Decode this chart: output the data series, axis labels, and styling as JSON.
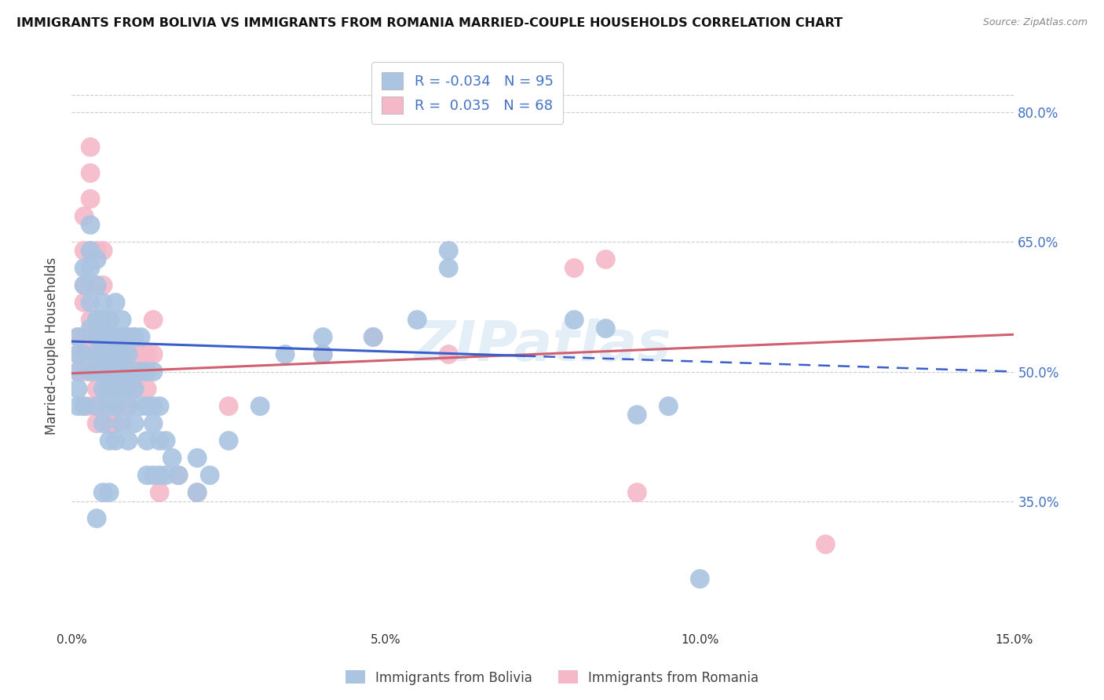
{
  "title": "IMMIGRANTS FROM BOLIVIA VS IMMIGRANTS FROM ROMANIA MARRIED-COUPLE HOUSEHOLDS CORRELATION CHART",
  "source": "Source: ZipAtlas.com",
  "ylabel": "Married-couple Households",
  "xmin": 0.0,
  "xmax": 0.15,
  "ymin": 0.2,
  "ymax": 0.86,
  "ytick_vals": [
    0.35,
    0.5,
    0.65,
    0.8
  ],
  "ytick_labels": [
    "35.0%",
    "50.0%",
    "65.0%",
    "80.0%"
  ],
  "xtick_vals": [
    0.0,
    0.05,
    0.1,
    0.15
  ],
  "xtick_labels": [
    "0.0%",
    "5.0%",
    "10.0%",
    "15.0%"
  ],
  "bolivia_color": "#aac4e2",
  "romania_color": "#f4b8c8",
  "bolivia_R": -0.034,
  "bolivia_N": 95,
  "romania_R": 0.035,
  "romania_N": 68,
  "bolivia_line_color": "#3a5fcd",
  "romania_line_color": "#d06070",
  "watermark": "ZIPatlas",
  "bolivia_line_solid_end": 0.072,
  "bolivia_line_y0": 0.535,
  "bolivia_line_y1": 0.5,
  "romania_line_y0": 0.498,
  "romania_line_y1": 0.543,
  "bolivia_points": [
    [
      0.002,
      0.46
    ],
    [
      0.002,
      0.52
    ],
    [
      0.002,
      0.6
    ],
    [
      0.002,
      0.62
    ],
    [
      0.003,
      0.5
    ],
    [
      0.003,
      0.55
    ],
    [
      0.003,
      0.58
    ],
    [
      0.003,
      0.62
    ],
    [
      0.003,
      0.64
    ],
    [
      0.003,
      0.67
    ],
    [
      0.004,
      0.46
    ],
    [
      0.004,
      0.5
    ],
    [
      0.004,
      0.52
    ],
    [
      0.004,
      0.54
    ],
    [
      0.004,
      0.56
    ],
    [
      0.004,
      0.6
    ],
    [
      0.004,
      0.63
    ],
    [
      0.005,
      0.44
    ],
    [
      0.005,
      0.48
    ],
    [
      0.005,
      0.5
    ],
    [
      0.005,
      0.52
    ],
    [
      0.005,
      0.54
    ],
    [
      0.005,
      0.56
    ],
    [
      0.005,
      0.58
    ],
    [
      0.006,
      0.42
    ],
    [
      0.006,
      0.46
    ],
    [
      0.006,
      0.48
    ],
    [
      0.006,
      0.5
    ],
    [
      0.006,
      0.52
    ],
    [
      0.006,
      0.54
    ],
    [
      0.006,
      0.56
    ],
    [
      0.007,
      0.42
    ],
    [
      0.007,
      0.46
    ],
    [
      0.007,
      0.48
    ],
    [
      0.007,
      0.5
    ],
    [
      0.007,
      0.52
    ],
    [
      0.007,
      0.54
    ],
    [
      0.007,
      0.58
    ],
    [
      0.008,
      0.44
    ],
    [
      0.008,
      0.48
    ],
    [
      0.008,
      0.5
    ],
    [
      0.008,
      0.52
    ],
    [
      0.008,
      0.54
    ],
    [
      0.008,
      0.56
    ],
    [
      0.009,
      0.42
    ],
    [
      0.009,
      0.46
    ],
    [
      0.009,
      0.48
    ],
    [
      0.009,
      0.5
    ],
    [
      0.009,
      0.52
    ],
    [
      0.009,
      0.54
    ],
    [
      0.01,
      0.44
    ],
    [
      0.01,
      0.48
    ],
    [
      0.01,
      0.5
    ],
    [
      0.01,
      0.54
    ],
    [
      0.011,
      0.46
    ],
    [
      0.011,
      0.5
    ],
    [
      0.011,
      0.54
    ],
    [
      0.012,
      0.38
    ],
    [
      0.012,
      0.42
    ],
    [
      0.012,
      0.46
    ],
    [
      0.012,
      0.5
    ],
    [
      0.013,
      0.38
    ],
    [
      0.013,
      0.44
    ],
    [
      0.013,
      0.46
    ],
    [
      0.013,
      0.5
    ],
    [
      0.014,
      0.38
    ],
    [
      0.014,
      0.42
    ],
    [
      0.014,
      0.46
    ],
    [
      0.015,
      0.38
    ],
    [
      0.015,
      0.42
    ],
    [
      0.016,
      0.4
    ],
    [
      0.017,
      0.38
    ],
    [
      0.02,
      0.36
    ],
    [
      0.02,
      0.4
    ],
    [
      0.022,
      0.38
    ],
    [
      0.025,
      0.42
    ],
    [
      0.03,
      0.46
    ],
    [
      0.034,
      0.52
    ],
    [
      0.04,
      0.52
    ],
    [
      0.04,
      0.54
    ],
    [
      0.048,
      0.54
    ],
    [
      0.055,
      0.56
    ],
    [
      0.06,
      0.62
    ],
    [
      0.06,
      0.64
    ],
    [
      0.08,
      0.56
    ],
    [
      0.085,
      0.55
    ],
    [
      0.09,
      0.45
    ],
    [
      0.095,
      0.46
    ],
    [
      0.1,
      0.26
    ],
    [
      0.004,
      0.33
    ],
    [
      0.005,
      0.36
    ],
    [
      0.006,
      0.36
    ],
    [
      0.001,
      0.54
    ],
    [
      0.001,
      0.52
    ],
    [
      0.001,
      0.5
    ],
    [
      0.001,
      0.48
    ],
    [
      0.001,
      0.46
    ]
  ],
  "romania_points": [
    [
      0.002,
      0.46
    ],
    [
      0.002,
      0.5
    ],
    [
      0.002,
      0.54
    ],
    [
      0.002,
      0.58
    ],
    [
      0.002,
      0.6
    ],
    [
      0.002,
      0.64
    ],
    [
      0.002,
      0.68
    ],
    [
      0.003,
      0.46
    ],
    [
      0.003,
      0.5
    ],
    [
      0.003,
      0.52
    ],
    [
      0.003,
      0.54
    ],
    [
      0.003,
      0.56
    ],
    [
      0.003,
      0.6
    ],
    [
      0.003,
      0.64
    ],
    [
      0.003,
      0.7
    ],
    [
      0.003,
      0.73
    ],
    [
      0.003,
      0.76
    ],
    [
      0.004,
      0.44
    ],
    [
      0.004,
      0.48
    ],
    [
      0.004,
      0.52
    ],
    [
      0.004,
      0.54
    ],
    [
      0.004,
      0.56
    ],
    [
      0.004,
      0.6
    ],
    [
      0.004,
      0.64
    ],
    [
      0.005,
      0.46
    ],
    [
      0.005,
      0.5
    ],
    [
      0.005,
      0.52
    ],
    [
      0.005,
      0.56
    ],
    [
      0.005,
      0.6
    ],
    [
      0.005,
      0.64
    ],
    [
      0.006,
      0.44
    ],
    [
      0.006,
      0.48
    ],
    [
      0.006,
      0.5
    ],
    [
      0.006,
      0.52
    ],
    [
      0.006,
      0.54
    ],
    [
      0.006,
      0.56
    ],
    [
      0.007,
      0.44
    ],
    [
      0.007,
      0.48
    ],
    [
      0.007,
      0.52
    ],
    [
      0.007,
      0.54
    ],
    [
      0.008,
      0.46
    ],
    [
      0.008,
      0.5
    ],
    [
      0.008,
      0.52
    ],
    [
      0.008,
      0.54
    ],
    [
      0.009,
      0.46
    ],
    [
      0.009,
      0.5
    ],
    [
      0.009,
      0.54
    ],
    [
      0.01,
      0.48
    ],
    [
      0.01,
      0.52
    ],
    [
      0.01,
      0.54
    ],
    [
      0.011,
      0.5
    ],
    [
      0.011,
      0.52
    ],
    [
      0.012,
      0.48
    ],
    [
      0.012,
      0.52
    ],
    [
      0.013,
      0.52
    ],
    [
      0.013,
      0.56
    ],
    [
      0.014,
      0.36
    ],
    [
      0.017,
      0.38
    ],
    [
      0.02,
      0.36
    ],
    [
      0.025,
      0.46
    ],
    [
      0.04,
      0.52
    ],
    [
      0.048,
      0.54
    ],
    [
      0.06,
      0.52
    ],
    [
      0.08,
      0.62
    ],
    [
      0.085,
      0.63
    ],
    [
      0.09,
      0.36
    ],
    [
      0.12,
      0.3
    ],
    [
      0.001,
      0.5
    ],
    [
      0.001,
      0.52
    ],
    [
      0.001,
      0.54
    ]
  ]
}
